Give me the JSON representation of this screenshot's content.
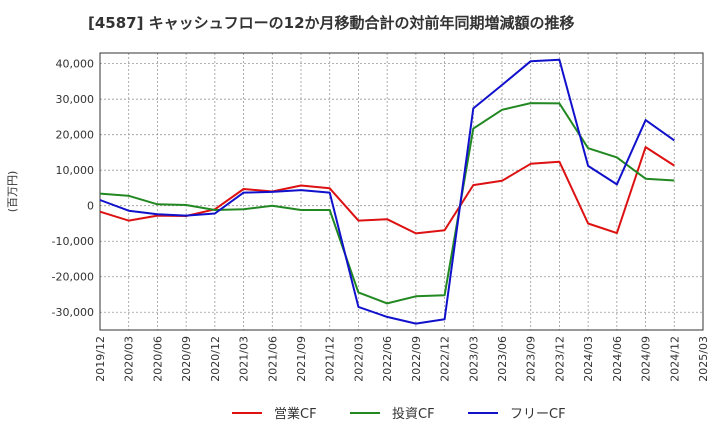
{
  "chart_data": {
    "type": "line",
    "title": "[4587]  キャッシュフローの12か月移動合計の対前年同期増減額の推移",
    "ylabel": "(百万円)",
    "xlabel": "",
    "ylim": [
      -35000,
      43000
    ],
    "y_ticks": [
      -30000,
      -20000,
      -10000,
      0,
      10000,
      20000,
      30000,
      40000
    ],
    "y_tick_labels": [
      "-30,000",
      "-20,000",
      "-10,000",
      "0",
      "10,000",
      "20,000",
      "30,000",
      "40,000"
    ],
    "grid": true,
    "legend_position": "bottom",
    "x_tick_labels": [
      "2019/12",
      "2020/03",
      "2020/06",
      "2020/09",
      "2020/12",
      "2021/03",
      "2021/06",
      "2021/09",
      "2021/12",
      "2022/03",
      "2022/06",
      "2022/09",
      "2022/12",
      "2023/03",
      "2023/06",
      "2023/09",
      "2023/12",
      "2024/03",
      "2024/06",
      "2024/09",
      "2024/12",
      "2025/03"
    ],
    "series": [
      {
        "name": "営業CF",
        "color": "#dd1111",
        "values": [
          -1700,
          -4200,
          -2800,
          -2900,
          -1000,
          4700,
          4000,
          5700,
          4900,
          -4200,
          -3800,
          -7800,
          -6900,
          5800,
          7000,
          11800,
          12400,
          -5000,
          -7700,
          16500,
          11300,
          null
        ]
      },
      {
        "name": "投資CF",
        "color": "#228822",
        "values": [
          3400,
          2800,
          400,
          200,
          -1200,
          -1000,
          0,
          -1200,
          -1200,
          -24400,
          -27500,
          -25500,
          -25200,
          21700,
          27000,
          28900,
          28800,
          16200,
          13600,
          7600,
          7100,
          null
        ]
      },
      {
        "name": "フリーCF",
        "color": "#1111cc",
        "values": [
          1600,
          -1400,
          -2400,
          -2800,
          -2200,
          3700,
          3900,
          4400,
          3700,
          -28500,
          -31300,
          -33200,
          -32000,
          27400,
          34000,
          40700,
          41100,
          11200,
          6000,
          24100,
          18400,
          null
        ]
      }
    ]
  }
}
